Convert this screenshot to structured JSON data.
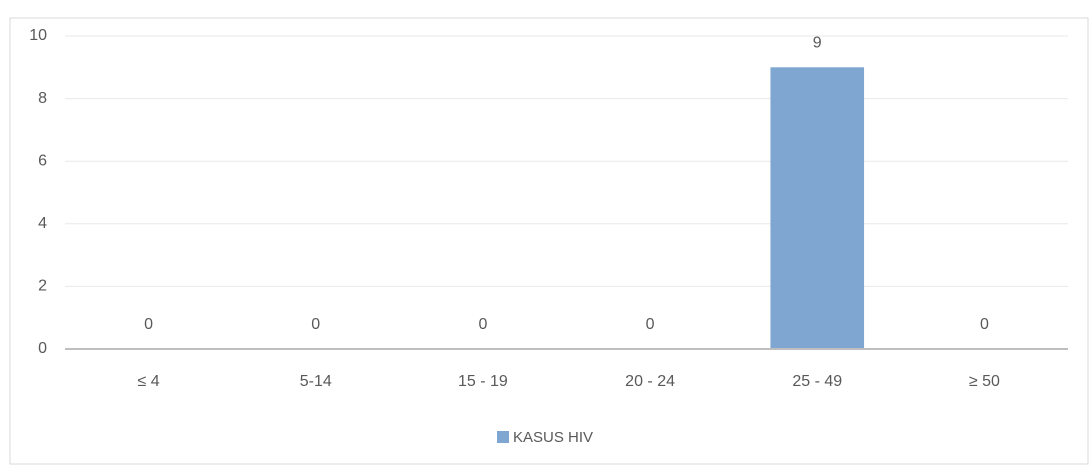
{
  "chart_data": {
    "type": "bar",
    "categories": [
      "≤ 4",
      "5-14",
      "15 - 19",
      "20 - 24",
      "25 - 49",
      "≥ 50"
    ],
    "series": [
      {
        "name": "KASUS HIV",
        "color": "#7fa5d1",
        "values": [
          0,
          0,
          0,
          0,
          9,
          0
        ]
      }
    ],
    "ylim": [
      0,
      10
    ],
    "yticks": [
      0,
      2,
      4,
      6,
      8,
      10
    ],
    "grid": true,
    "legend": "bottom"
  }
}
